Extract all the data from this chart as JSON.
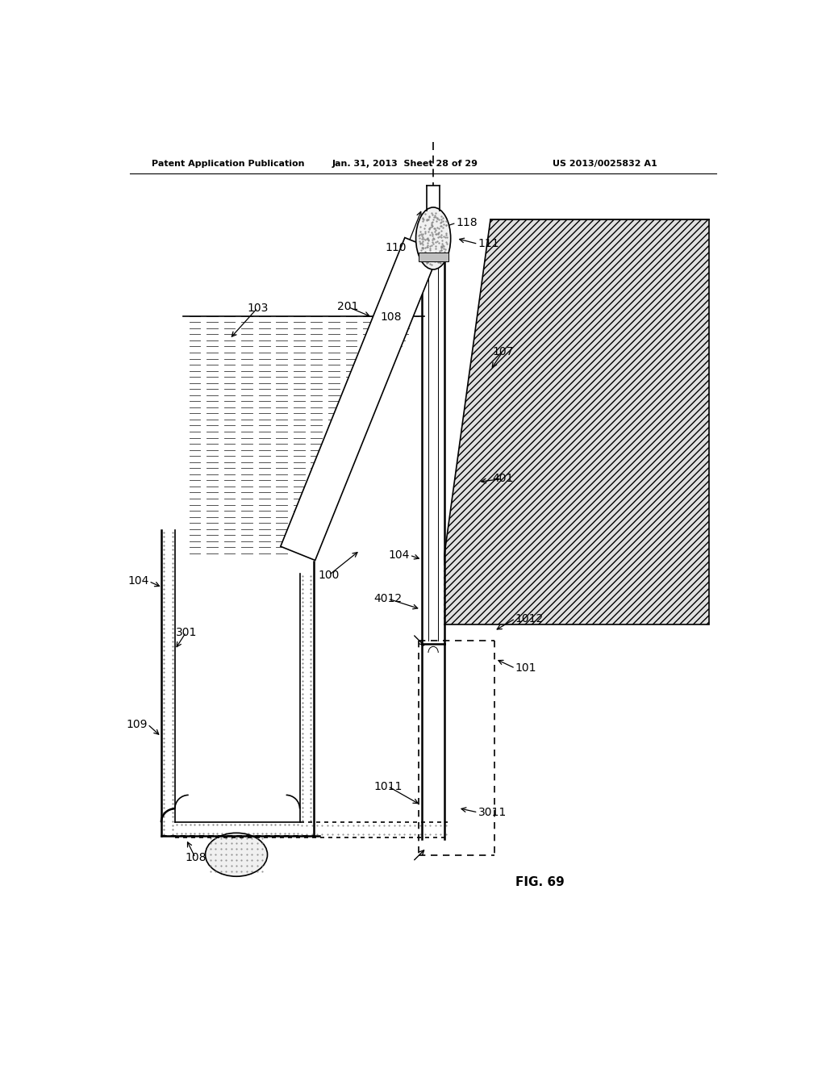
{
  "header_left": "Patent Application Publication",
  "header_mid": "Jan. 31, 2013  Sheet 28 of 29",
  "header_right": "US 2013/0025832 A1",
  "fig_label": "FIG. 69",
  "bg": "#ffffff",
  "lc": "#000000"
}
